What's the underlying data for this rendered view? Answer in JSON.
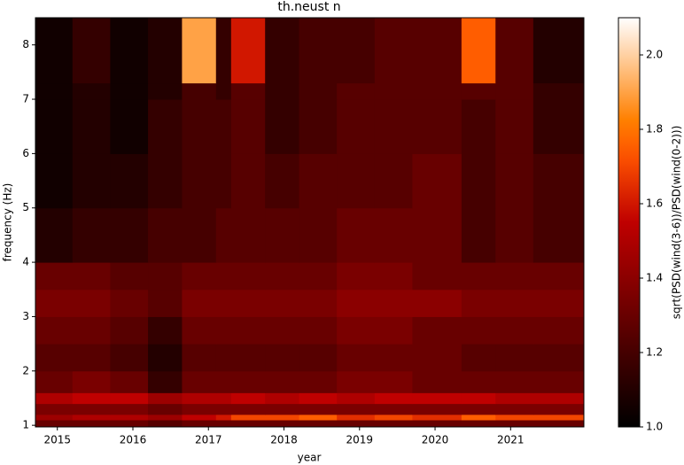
{
  "chart_data": {
    "type": "heatmap",
    "title": "th.neust n",
    "x_label": "year",
    "y_label": "frequency (Hz)",
    "colorbar_label": "sqrt(PSD(wind(3-6))/PSD(wind(0-2)))",
    "colormap": "gist_heat",
    "clim": [
      1,
      2.1
    ],
    "colorbar_ticks": [
      {
        "value": 1.0,
        "label": "1.0"
      },
      {
        "value": 1.2,
        "label": "1.2"
      },
      {
        "value": 1.4,
        "label": "1.4"
      },
      {
        "value": 1.6,
        "label": "1.6"
      },
      {
        "value": 1.8,
        "label": "1.8"
      },
      {
        "value": 2.0,
        "label": "2.0"
      }
    ],
    "xlim": [
      2014.71,
      2021.97
    ],
    "xticks": [
      2015,
      2016,
      2017,
      2018,
      2019,
      2020,
      2021
    ],
    "ylim": [
      0.97,
      8.5
    ],
    "yticks": [
      1,
      2,
      3,
      4,
      5,
      6,
      7,
      8
    ],
    "x_edges": [
      2014.71,
      2015.2,
      2015.7,
      2016.2,
      2016.65,
      2017.1,
      2017.3,
      2017.75,
      2018.2,
      2018.7,
      2019.2,
      2019.7,
      2020.35,
      2020.8,
      2021.3,
      2021.97
    ],
    "y_edges": [
      0.97,
      1.1,
      1.2,
      1.4,
      1.6,
      2,
      2.5,
      3,
      3.5,
      4,
      5,
      6,
      7,
      7.3,
      8.5
    ],
    "z": [
      [
        1.3,
        1.3,
        1.3,
        1.25,
        1.3,
        1.3,
        1.3,
        1.3,
        1.3,
        1.3,
        1.3,
        1.3,
        1.3,
        1.3,
        1.3
      ],
      [
        1.45,
        1.5,
        1.5,
        1.45,
        1.55,
        1.6,
        1.7,
        1.7,
        1.75,
        1.65,
        1.7,
        1.65,
        1.75,
        1.7,
        1.7
      ],
      [
        1.35,
        1.35,
        1.35,
        1.3,
        1.35,
        1.35,
        1.35,
        1.35,
        1.35,
        1.35,
        1.35,
        1.35,
        1.35,
        1.35,
        1.35
      ],
      [
        1.5,
        1.55,
        1.55,
        1.45,
        1.5,
        1.5,
        1.55,
        1.5,
        1.55,
        1.5,
        1.55,
        1.55,
        1.55,
        1.5,
        1.5
      ],
      [
        1.3,
        1.35,
        1.3,
        1.15,
        1.3,
        1.3,
        1.3,
        1.3,
        1.3,
        1.35,
        1.35,
        1.3,
        1.3,
        1.3,
        1.3
      ],
      [
        1.25,
        1.25,
        1.2,
        1.1,
        1.25,
        1.25,
        1.25,
        1.25,
        1.25,
        1.3,
        1.3,
        1.3,
        1.25,
        1.25,
        1.25
      ],
      [
        1.3,
        1.3,
        1.25,
        1.15,
        1.3,
        1.3,
        1.3,
        1.3,
        1.3,
        1.35,
        1.35,
        1.3,
        1.3,
        1.3,
        1.3
      ],
      [
        1.35,
        1.35,
        1.3,
        1.25,
        1.35,
        1.35,
        1.35,
        1.35,
        1.35,
        1.4,
        1.4,
        1.4,
        1.35,
        1.35,
        1.35
      ],
      [
        1.3,
        1.3,
        1.25,
        1.25,
        1.3,
        1.3,
        1.3,
        1.3,
        1.3,
        1.35,
        1.35,
        1.3,
        1.3,
        1.3,
        1.3
      ],
      [
        1.1,
        1.15,
        1.15,
        1.2,
        1.2,
        1.25,
        1.25,
        1.25,
        1.25,
        1.3,
        1.3,
        1.3,
        1.2,
        1.25,
        1.2
      ],
      [
        1.05,
        1.1,
        1.1,
        1.15,
        1.2,
        1.2,
        1.25,
        1.2,
        1.25,
        1.25,
        1.25,
        1.3,
        1.2,
        1.25,
        1.2
      ],
      [
        1.05,
        1.1,
        1.05,
        1.15,
        1.2,
        1.2,
        1.25,
        1.15,
        1.2,
        1.25,
        1.25,
        1.25,
        1.2,
        1.25,
        1.15
      ],
      [
        1.05,
        1.1,
        1.05,
        1.1,
        1.2,
        1.15,
        1.25,
        1.15,
        1.2,
        1.25,
        1.25,
        1.25,
        1.25,
        1.25,
        1.15
      ],
      [
        1.05,
        1.15,
        1.05,
        1.1,
        1.9,
        1.15,
        1.6,
        1.15,
        1.2,
        1.2,
        1.25,
        1.25,
        1.75,
        1.25,
        1.1
      ]
    ]
  }
}
